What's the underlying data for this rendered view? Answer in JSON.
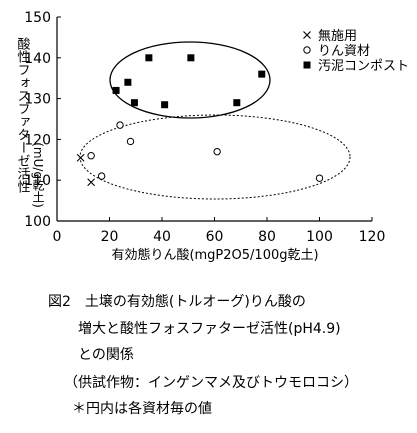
{
  "chart_data": {
    "type": "scatter",
    "xlabel": "有効態りん酸(mgP2O5/100g乾土)",
    "ylabel": [
      "酸性フォスファターゼ活性",
      "(mU/g乾土)"
    ],
    "xlim": [
      0,
      120
    ],
    "ylim": [
      100,
      150
    ],
    "xticks": [
      0,
      20,
      40,
      60,
      80,
      100,
      120
    ],
    "yticks": [
      100,
      110,
      120,
      130,
      140,
      150
    ],
    "series": [
      {
        "name": "無施用",
        "marker": "x",
        "color": "#000000",
        "x": [
          9,
          13
        ],
        "values": [
          115.5,
          109.5
        ]
      },
      {
        "name": "りん資材",
        "marker": "circle",
        "color": "#000000",
        "x": [
          13,
          17,
          24,
          28,
          61,
          100
        ],
        "values": [
          116,
          111,
          123.5,
          119.5,
          117,
          110.5
        ]
      },
      {
        "name": "汚泥コンポスト",
        "marker": "square",
        "color": "#000000",
        "x": [
          22.5,
          27,
          29.5,
          35,
          41,
          51,
          68.5,
          78
        ],
        "values": [
          132,
          134,
          129,
          140,
          128.5,
          140,
          129,
          136
        ]
      }
    ]
  },
  "caption": [
    "図2　土壌の有効態(トルオーグ)りん酸の",
    "増大と酸性フォスファターゼ活性(pH4.9)",
    "との関係",
    "（供試作物：インゲンマメ及びトウモロコシ）",
    "＊円内は各資材毎の値"
  ]
}
